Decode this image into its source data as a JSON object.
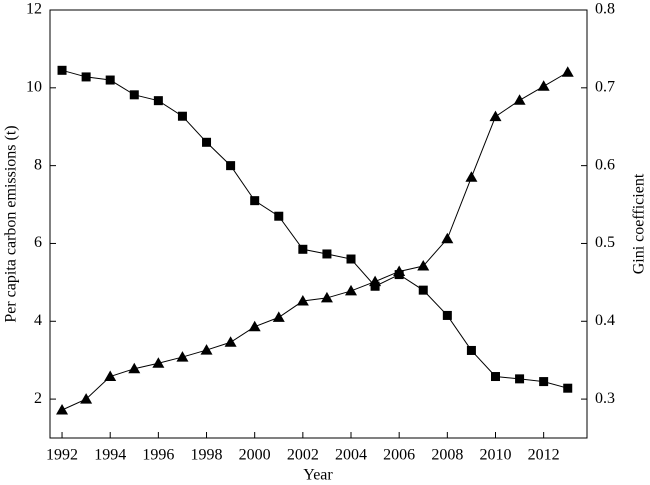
{
  "chart_data": {
    "type": "line",
    "x_label": "Year",
    "y_label": "Per capita carbon emissions (t)",
    "y2_label": "Gini coefficient",
    "x": [
      1992,
      1993,
      1994,
      1995,
      1996,
      1997,
      1998,
      1999,
      2000,
      2001,
      2002,
      2003,
      2004,
      2005,
      2006,
      2007,
      2008,
      2009,
      2010,
      2011,
      2012,
      2013
    ],
    "series": [
      {
        "color": "#000000",
        "marker": "square",
        "axis": "y",
        "values": [
          10.45,
          10.28,
          10.2,
          9.82,
          9.67,
          9.27,
          8.6,
          8.0,
          7.1,
          6.7,
          5.85,
          5.73,
          5.6,
          4.9,
          5.2,
          4.8,
          4.15,
          3.25,
          2.58,
          2.52,
          2.45,
          2.28
        ]
      },
      {
        "color": "#000000",
        "marker": "triangle",
        "axis": "y2",
        "values": [
          0.286,
          0.3,
          0.329,
          0.339,
          0.346,
          0.354,
          0.363,
          0.373,
          0.393,
          0.405,
          0.426,
          0.43,
          0.439,
          0.451,
          0.464,
          0.471,
          0.506,
          0.585,
          0.663,
          0.684,
          0.702,
          0.72
        ]
      }
    ],
    "xlim": [
      1991.5,
      2013.8
    ],
    "xticks": [
      1992,
      1994,
      1996,
      1998,
      2000,
      2002,
      2004,
      2006,
      2008,
      2010,
      2012
    ],
    "ylim": [
      1,
      12
    ],
    "yticks": [
      2,
      4,
      6,
      8,
      10,
      12
    ],
    "y2lim": [
      0.25,
      0.8
    ],
    "y2ticks": [
      0.3,
      0.4,
      0.5,
      0.6,
      0.7,
      0.8
    ],
    "grid": false
  }
}
